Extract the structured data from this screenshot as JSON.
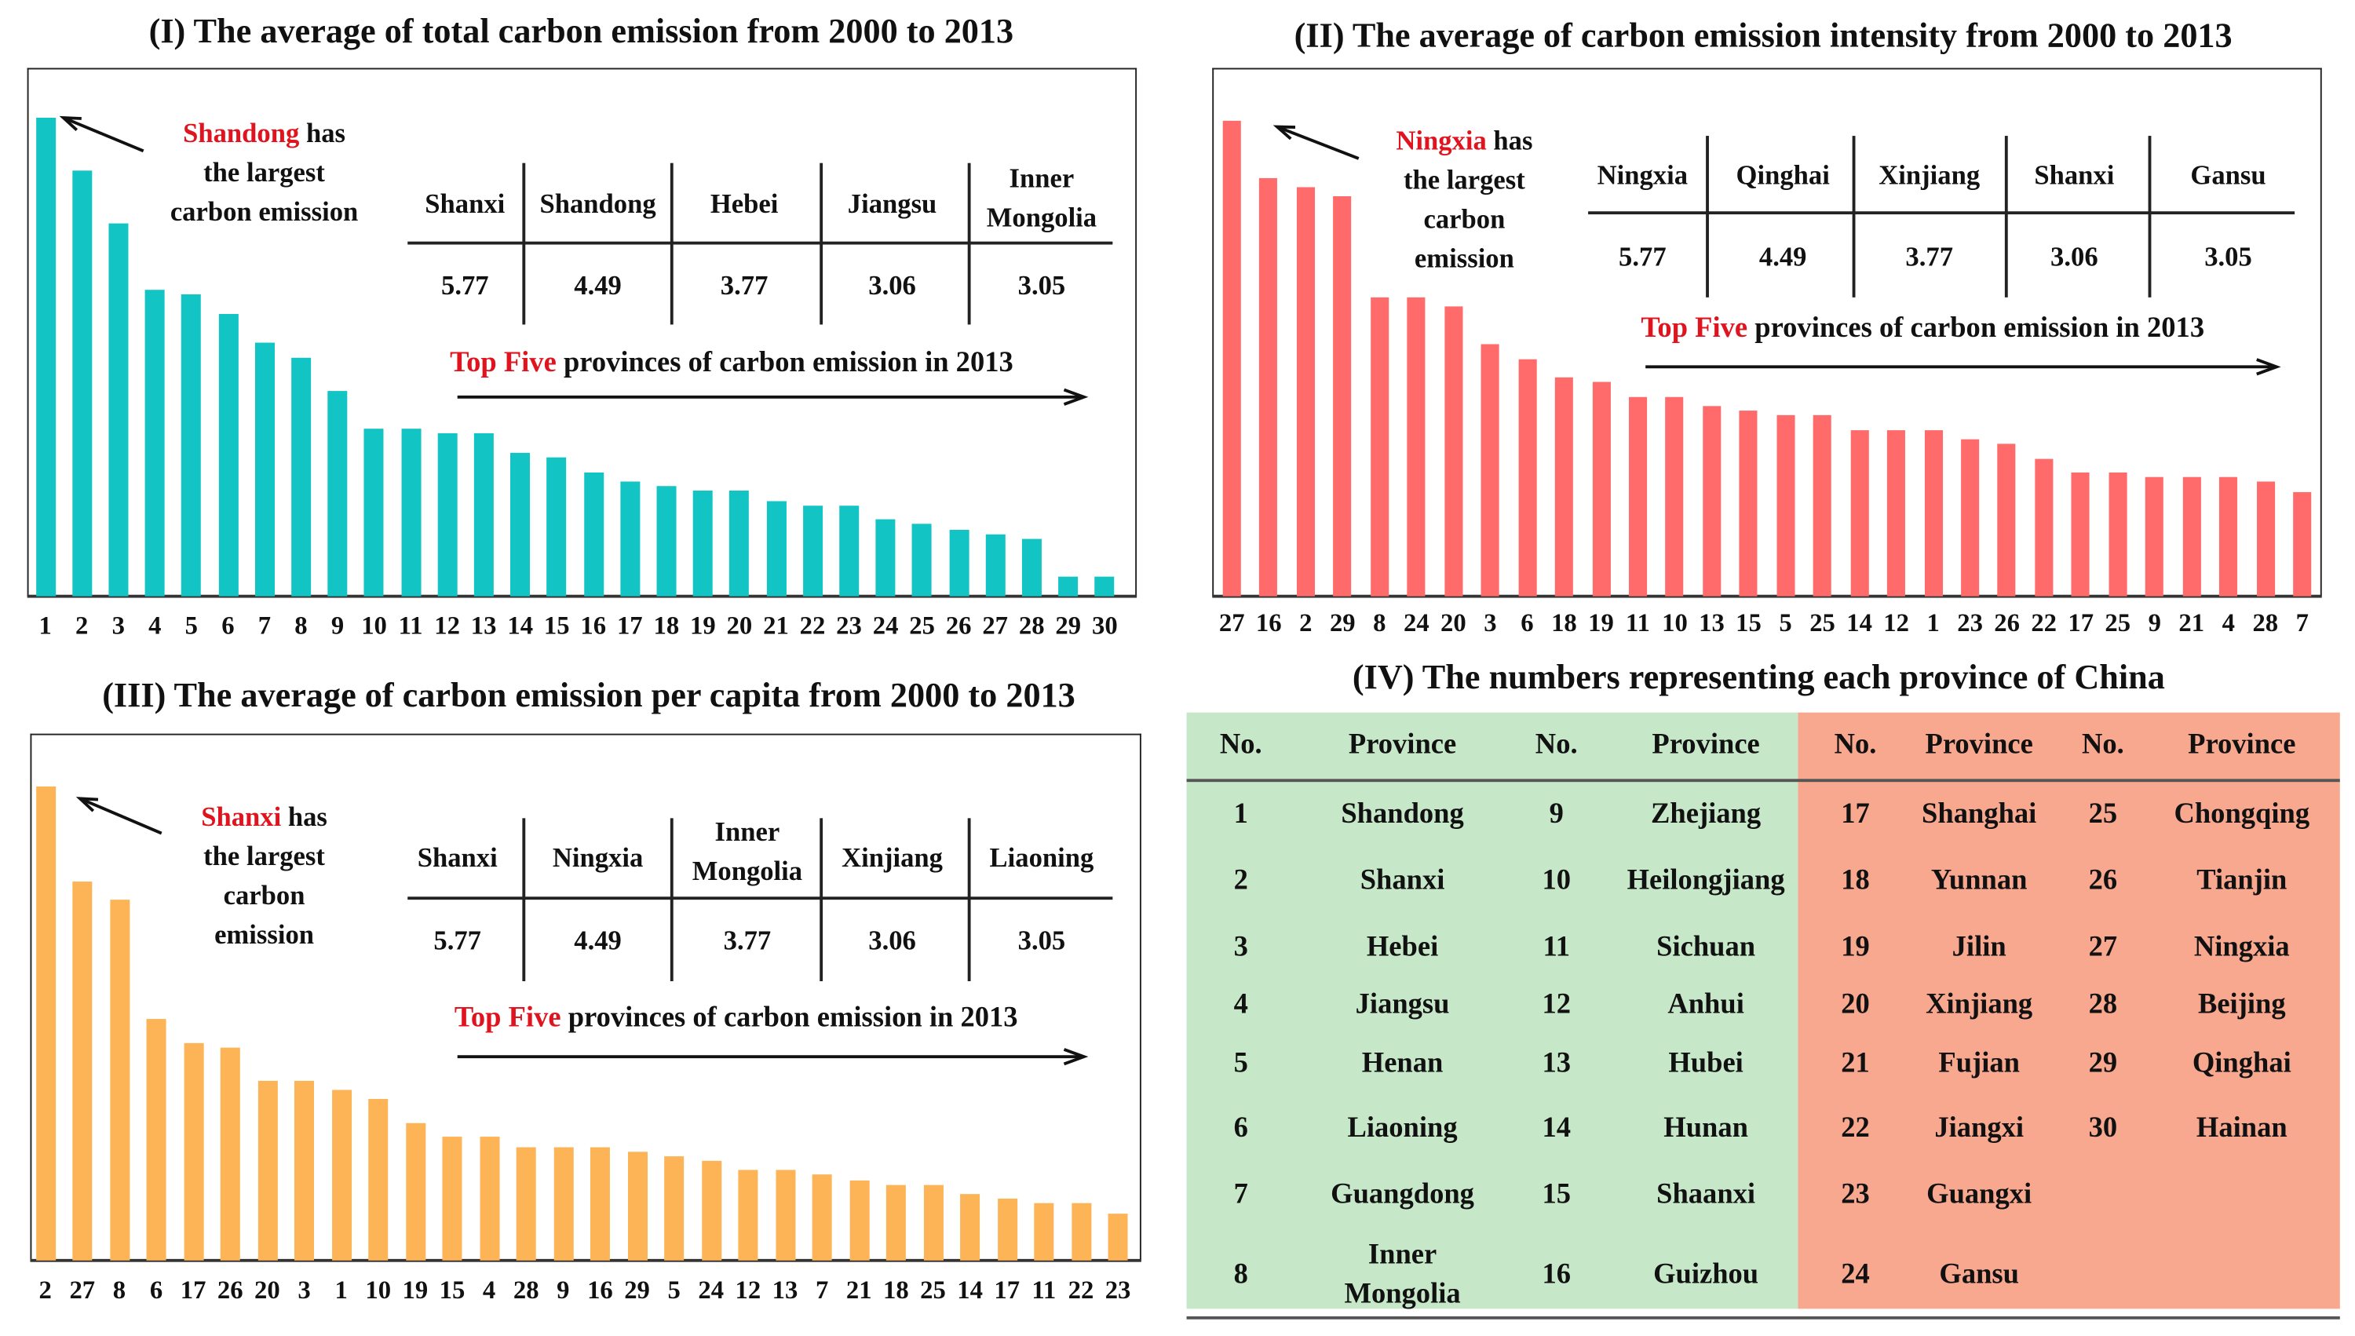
{
  "colors": {
    "panel1": "#13c4c4",
    "panel2": "#ff6b6b",
    "panel3": "#fcb457",
    "table_left": "#c6e8c9",
    "table_right": "#f8a88e",
    "highlight": "#e0141e"
  },
  "chart_data": [
    {
      "type": "bar",
      "title": "(I) The average of total carbon emission from 2000 to 2013",
      "xlabel": "",
      "ylabel": "",
      "axis": "none (relative bar heights, tallest = 100)",
      "categories": [
        "1",
        "2",
        "3",
        "4",
        "5",
        "6",
        "7",
        "8",
        "9",
        "10",
        "11",
        "12",
        "13",
        "14",
        "15",
        "16",
        "17",
        "18",
        "19",
        "20",
        "21",
        "22",
        "23",
        "24",
        "25",
        "26",
        "27",
        "28",
        "29",
        "30"
      ],
      "values": [
        100,
        89,
        78,
        64,
        63,
        59,
        53,
        50,
        43,
        35,
        35,
        34,
        34,
        30,
        29,
        26,
        24,
        23,
        22,
        22,
        20,
        19,
        19,
        16,
        15,
        14,
        13,
        12,
        4,
        4
      ],
      "annotation": {
        "highlight": "Shandong",
        "rest": [
          "has",
          "the largest",
          "carbon emission"
        ]
      },
      "inset_table": {
        "headers": [
          "Shanxi",
          "Shandong",
          "Hebei",
          "Jiangsu",
          "Inner Mongolia"
        ],
        "values": [
          "5.77",
          "4.49",
          "3.77",
          "3.06",
          "3.05"
        ]
      },
      "caption": {
        "highlight": "Top Five",
        "rest": "provinces of carbon emission in 2013"
      }
    },
    {
      "type": "bar",
      "title": "(II) The average of carbon emission intensity from 2000 to 2013",
      "xlabel": "",
      "ylabel": "",
      "axis": "none (relative bar heights, tallest = 100)",
      "categories": [
        "27",
        "16",
        "2",
        "29",
        "8",
        "24",
        "20",
        "3",
        "6",
        "18",
        "19",
        "11",
        "10",
        "13",
        "15",
        "5",
        "25",
        "14",
        "12",
        "1",
        "23",
        "26",
        "22",
        "17",
        "25",
        "9",
        "21",
        "4",
        "28",
        "7"
      ],
      "values": [
        100,
        88,
        86,
        84,
        63,
        63,
        61,
        53,
        50,
        46,
        45,
        42,
        42,
        40,
        39,
        38,
        38,
        35,
        35,
        35,
        33,
        32,
        29,
        26,
        26,
        25,
        25,
        25,
        24,
        22
      ],
      "annotation": {
        "highlight": "Ningxia",
        "rest": [
          "has",
          "the largest",
          "carbon",
          "emission"
        ]
      },
      "inset_table": {
        "headers": [
          "Ningxia",
          "Qinghai",
          "Xinjiang",
          "Shanxi",
          "Gansu"
        ],
        "values": [
          "5.77",
          "4.49",
          "3.77",
          "3.06",
          "3.05"
        ]
      },
      "caption": {
        "highlight": "Top Five",
        "rest": "provinces of carbon emission in 2013"
      }
    },
    {
      "type": "bar",
      "title": "(III) The average of carbon emission per capita from 2000 to 2013",
      "xlabel": "",
      "ylabel": "",
      "axis": "none (relative bar heights, tallest = 100)",
      "categories": [
        "2",
        "27",
        "8",
        "6",
        "17",
        "26",
        "20",
        "3",
        "1",
        "10",
        "19",
        "15",
        "4",
        "28",
        "9",
        "16",
        "29",
        "5",
        "24",
        "12",
        "13",
        "7",
        "21",
        "18",
        "25",
        "14",
        "17",
        "11",
        "22",
        "23"
      ],
      "values": [
        100,
        80,
        76,
        51,
        46,
        45,
        38,
        38,
        36,
        34,
        29,
        26,
        26,
        24,
        24,
        24,
        23,
        22,
        21,
        19,
        19,
        18,
        17,
        16,
        16,
        14,
        13,
        12,
        12,
        10
      ],
      "annotation": {
        "highlight": "Shanxi",
        "rest": [
          "has",
          "the largest",
          "carbon",
          "emission"
        ]
      },
      "inset_table": {
        "headers": [
          "Shanxi",
          "Ningxia",
          "Inner Mongolia",
          "Xinjiang",
          "Liaoning"
        ],
        "values": [
          "5.77",
          "4.49",
          "3.77",
          "3.06",
          "3.05"
        ]
      },
      "caption": {
        "highlight": "Top Five",
        "rest": "provinces of carbon emission in 2013"
      }
    }
  ],
  "table4": {
    "title": "(IV) The numbers representing each province of China",
    "headers": [
      "No.",
      "Province",
      "No.",
      "Province",
      "No.",
      "Province",
      "No.",
      "Province"
    ],
    "rows": [
      [
        "1",
        "Shandong",
        "9",
        "Zhejiang",
        "17",
        "Shanghai",
        "25",
        "Chongqing"
      ],
      [
        "2",
        "Shanxi",
        "10",
        "Heilongjiang",
        "18",
        "Yunnan",
        "26",
        "Tianjin"
      ],
      [
        "3",
        "Hebei",
        "11",
        "Sichuan",
        "19",
        "Jilin",
        "27",
        "Ningxia"
      ],
      [
        "4",
        "Jiangsu",
        "12",
        "Anhui",
        "20",
        "Xinjiang",
        "28",
        "Beijing"
      ],
      [
        "5",
        "Henan",
        "13",
        "Hubei",
        "21",
        "Fujian",
        "29",
        "Qinghai"
      ],
      [
        "6",
        "Liaoning",
        "14",
        "Hunan",
        "22",
        "Jiangxi",
        "30",
        "Hainan"
      ],
      [
        "7",
        "Guangdong",
        "15",
        "Shaanxi",
        "23",
        "Guangxi",
        "",
        ""
      ],
      [
        "8",
        "Inner Mongolia",
        "16",
        "Guizhou",
        "24",
        "Gansu",
        "",
        ""
      ]
    ]
  }
}
